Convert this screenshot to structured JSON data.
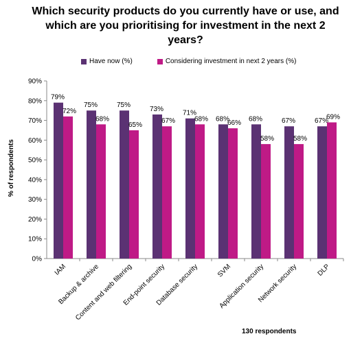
{
  "chart_data": {
    "type": "bar",
    "title": "Which security products do you currently have or use, and which are you prioritising for investment in the next 2 years?",
    "ylabel": "% of respondents",
    "xlabel": "",
    "ylim": [
      0,
      90
    ],
    "y_ticks": [
      "0%",
      "10%",
      "20%",
      "30%",
      "40%",
      "50%",
      "60%",
      "70%",
      "80%",
      "90%"
    ],
    "categories": [
      "IAM",
      "Backup & archive",
      "Content and web filtering",
      "End-point security",
      "Database security",
      "SVM",
      "Application security",
      "Network security",
      "DLP"
    ],
    "series": [
      {
        "name": "Have now (%)",
        "color": "#5b3273",
        "values": [
          79,
          75,
          75,
          73,
          71,
          68,
          68,
          67,
          67
        ],
        "labels": [
          "79%",
          "75%",
          "75%",
          "73%",
          "71%",
          "68%",
          "68%",
          "67%",
          "67%"
        ]
      },
      {
        "name": "Considering investment in next 2 years (%)",
        "color": "#bf1a86",
        "values": [
          72,
          68,
          65,
          67,
          68,
          66,
          58,
          58,
          69
        ],
        "labels": [
          "72%",
          "68%",
          "65%",
          "67%",
          "68%",
          "66%",
          "58%",
          "58%",
          "69%"
        ]
      }
    ],
    "legend_position": "top",
    "grid": false,
    "footnote": "130 respondents"
  }
}
